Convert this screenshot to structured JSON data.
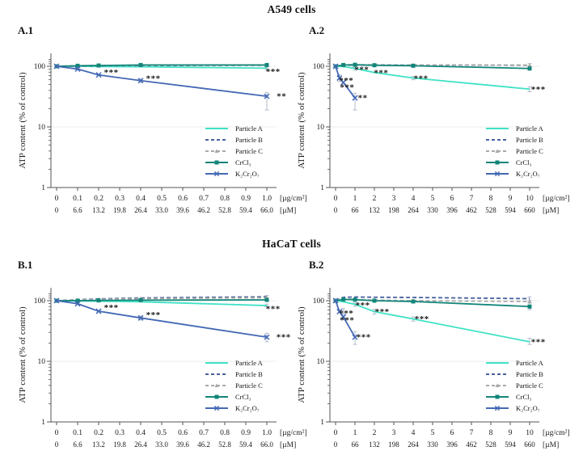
{
  "figure": {
    "row_titles": {
      "a": "A549 cells",
      "b": "HaCaT cells"
    },
    "panels": {
      "a1": "A.1",
      "a2": "A.2",
      "b1": "B.1",
      "b2": "B.2"
    }
  },
  "colors": {
    "particle_a": "#3fe2c5",
    "particle_b": "#46619e",
    "particle_c": "#a9a9a9",
    "crcl3": "#128579",
    "k2cr2o7": "#4468b4",
    "stars_blue": "#5b74c4",
    "stars_black": "#1a1a1a",
    "error_bar": "#b3bccd",
    "axis": "#555555",
    "grid": "#ededed"
  },
  "chart_data": [
    {
      "id": "A.1",
      "type": "line",
      "yscale": "log",
      "ylim": [
        1,
        140
      ],
      "ylabel": "ATP content (% of control)",
      "yticks": [
        "1",
        "10",
        "100"
      ],
      "x_tick_values": [
        0,
        0.1,
        0.2,
        0.3,
        0.4,
        0.5,
        0.6,
        0.7,
        0.8,
        0.9,
        1.0
      ],
      "x_ticks_ugcm2": [
        "0",
        "0.1",
        "0.2",
        "0.3",
        "0.4",
        "0.5",
        "0.6",
        "0.7",
        "0.8",
        "0.9",
        "1.0"
      ],
      "x_ticks_um": [
        "0",
        "6.6",
        "13.2",
        "19.8",
        "26.4",
        "33.0",
        "39.6",
        "46.2",
        "52.8",
        "59.4",
        "66.0"
      ],
      "x_unit_labels": [
        "[µg/cm²]",
        "[µM]"
      ],
      "legend_position": "bottom-right",
      "series": [
        {
          "name": "Particle A",
          "color": "#3fe2c5",
          "style": "solid",
          "marker": "none",
          "x": [
            0,
            0.1,
            0.2,
            0.4,
            1
          ],
          "y": [
            100,
            100,
            99,
            98,
            93
          ]
        },
        {
          "name": "Particle B",
          "color": "#46619e",
          "style": "dashed",
          "marker": "none",
          "x": [
            0,
            0.1,
            0.2,
            0.4,
            1
          ],
          "y": [
            100,
            101,
            102,
            103,
            104
          ]
        },
        {
          "name": "Particle C",
          "color": "#a9a9a9",
          "style": "dashed",
          "marker": "triangle",
          "x": [
            0,
            0.1,
            0.2,
            0.4,
            1
          ],
          "y": [
            100,
            102,
            103,
            104,
            105
          ]
        },
        {
          "name": "CrCl₃",
          "color": "#128579",
          "style": "solid",
          "marker": "square",
          "x": [
            0,
            0.1,
            0.2,
            0.4,
            1
          ],
          "y": [
            100,
            102,
            103,
            105,
            105
          ]
        },
        {
          "name": "K₂Cr₂O₇",
          "color": "#4468b4",
          "style": "solid",
          "marker": "x",
          "x": [
            0,
            0.1,
            0.2,
            0.4,
            1
          ],
          "y": [
            100,
            90,
            72,
            58,
            32
          ]
        }
      ],
      "error_bars": [
        {
          "x": 0.4,
          "lo": 54,
          "hi": 62
        },
        {
          "x": 1,
          "lo": 19,
          "hi": 37
        },
        {
          "x": 1,
          "lo": 88,
          "hi": 97
        },
        {
          "x": 1,
          "lo": 100,
          "hi": 110
        }
      ],
      "annotations": [
        {
          "x": 0.26,
          "y": 79,
          "text": "***",
          "color": "#5b74c4"
        },
        {
          "x": 0.46,
          "y": 63,
          "text": "***",
          "color": "#5b74c4"
        },
        {
          "x": 1.07,
          "y": 32,
          "text": "**",
          "color": "#5b74c4"
        },
        {
          "x": 1.03,
          "y": 82,
          "text": "***",
          "color": "#1a1a1a"
        }
      ]
    },
    {
      "id": "A.2",
      "type": "line",
      "yscale": "log",
      "ylim": [
        1,
        140
      ],
      "ylabel": "ATP content (% of control)",
      "yticks": [
        "1",
        "10",
        "100"
      ],
      "x_tick_values": [
        0,
        1,
        2,
        3,
        4,
        5,
        6,
        7,
        8,
        9,
        10
      ],
      "x_ticks_ugcm2": [
        "0",
        "1",
        "2",
        "3",
        "4",
        "5",
        "6",
        "7",
        "8",
        "9",
        "10"
      ],
      "x_ticks_um": [
        "0",
        "66",
        "132",
        "198",
        "264",
        "330",
        "396",
        "462",
        "528",
        "594",
        "660"
      ],
      "x_unit_labels": [
        "[µg/cm²]",
        "[µM]"
      ],
      "legend_position": "bottom-right",
      "series": [
        {
          "name": "Particle A",
          "color": "#3fe2c5",
          "style": "solid",
          "marker": "none",
          "x": [
            0,
            0.4,
            1,
            2,
            4,
            10
          ],
          "y": [
            100,
            99,
            92,
            79,
            64,
            42
          ]
        },
        {
          "name": "Particle B",
          "color": "#46619e",
          "style": "dashed",
          "marker": "none",
          "x": [
            0,
            0.4,
            1,
            2,
            4,
            10
          ],
          "y": [
            100,
            104,
            105,
            105,
            105,
            104
          ]
        },
        {
          "name": "Particle C",
          "color": "#a9a9a9",
          "style": "dashed",
          "marker": "triangle",
          "x": [
            0,
            0.4,
            1,
            2,
            4,
            10
          ],
          "y": [
            100,
            105,
            106,
            106,
            105,
            104
          ]
        },
        {
          "name": "CrCl₃",
          "color": "#128579",
          "style": "solid",
          "marker": "square",
          "x": [
            0,
            0.4,
            1,
            2,
            4,
            10
          ],
          "y": [
            100,
            105,
            106,
            104,
            102,
            92
          ]
        },
        {
          "name": "K₂Cr₂O₇",
          "color": "#4468b4",
          "style": "solid",
          "marker": "x",
          "x": [
            0,
            0.2,
            0.4,
            1
          ],
          "y": [
            100,
            64,
            54,
            30
          ]
        }
      ],
      "error_bars": [
        {
          "x": 0.2,
          "lo": 56,
          "hi": 72
        },
        {
          "x": 1,
          "lo": 19,
          "hi": 36
        },
        {
          "x": 1,
          "lo": 86,
          "hi": 97
        },
        {
          "x": 4,
          "lo": 60,
          "hi": 68
        },
        {
          "x": 10,
          "lo": 38,
          "hi": 46
        },
        {
          "x": 10,
          "lo": 86,
          "hi": 99
        },
        {
          "x": 10,
          "lo": 99,
          "hi": 111
        }
      ],
      "annotations": [
        {
          "x": 0.55,
          "y": 58,
          "text": "***",
          "color": "#5b74c4"
        },
        {
          "x": 0.6,
          "y": 45,
          "text": "***",
          "color": "#5b74c4"
        },
        {
          "x": 1.4,
          "y": 30,
          "text": "**",
          "color": "#5b74c4"
        },
        {
          "x": 1.35,
          "y": 88,
          "text": "***",
          "color": "#1a1a1a"
        },
        {
          "x": 2.35,
          "y": 78,
          "text": "***",
          "color": "#1a1a1a"
        },
        {
          "x": 4.4,
          "y": 63,
          "text": "***",
          "color": "#1a1a1a"
        },
        {
          "x": 10.45,
          "y": 42,
          "text": "***",
          "color": "#1a1a1a"
        }
      ]
    },
    {
      "id": "B.1",
      "type": "line",
      "yscale": "log",
      "ylim": [
        1,
        140
      ],
      "ylabel": "ATP content (% of control)",
      "yticks": [
        "1",
        "10",
        "100"
      ],
      "x_tick_values": [
        0,
        0.1,
        0.2,
        0.3,
        0.4,
        0.5,
        0.6,
        0.7,
        0.8,
        0.9,
        1.0
      ],
      "x_ticks_ugcm2": [
        "0",
        "0.1",
        "0.2",
        "0.3",
        "0.4",
        "0.5",
        "0.6",
        "0.7",
        "0.8",
        "0.9",
        "1.0"
      ],
      "x_ticks_um": [
        "0",
        "6.6",
        "13.2",
        "19.8",
        "26.4",
        "33.0",
        "39.6",
        "46.2",
        "52.8",
        "59.4",
        "66.0"
      ],
      "x_unit_labels": [
        "[µg/cm²]",
        "[µM]"
      ],
      "legend_position": "bottom-right",
      "series": [
        {
          "name": "Particle A",
          "color": "#3fe2c5",
          "style": "solid",
          "marker": "none",
          "x": [
            0,
            0.1,
            0.2,
            0.4,
            1
          ],
          "y": [
            100,
            99,
            98,
            96,
            83
          ]
        },
        {
          "name": "Particle B",
          "color": "#46619e",
          "style": "dashed",
          "marker": "none",
          "x": [
            0,
            0.1,
            0.2,
            0.4,
            1
          ],
          "y": [
            100,
            104,
            107,
            111,
            116
          ]
        },
        {
          "name": "Particle C",
          "color": "#a9a9a9",
          "style": "dashed",
          "marker": "triangle",
          "x": [
            0,
            0.1,
            0.2,
            0.4,
            1
          ],
          "y": [
            100,
            103,
            105,
            108,
            112
          ]
        },
        {
          "name": "CrCl₃",
          "color": "#128579",
          "style": "solid",
          "marker": "square",
          "x": [
            0,
            0.1,
            0.2,
            0.4,
            1
          ],
          "y": [
            100,
            100,
            101,
            102,
            103
          ]
        },
        {
          "name": "K₂Cr₂O₇",
          "color": "#4468b4",
          "style": "solid",
          "marker": "x",
          "x": [
            0,
            0.1,
            0.2,
            0.4,
            1
          ],
          "y": [
            100,
            89,
            67,
            52,
            25
          ]
        }
      ],
      "error_bars": [
        {
          "x": 0.4,
          "lo": 48,
          "hi": 56
        },
        {
          "x": 1,
          "lo": 21,
          "hi": 29
        },
        {
          "x": 1,
          "lo": 79,
          "hi": 88
        },
        {
          "x": 1,
          "lo": 110,
          "hi": 122
        }
      ],
      "annotations": [
        {
          "x": 0.26,
          "y": 77,
          "text": "***",
          "color": "#5b74c4"
        },
        {
          "x": 0.46,
          "y": 58,
          "text": "***",
          "color": "#5b74c4"
        },
        {
          "x": 1.08,
          "y": 25,
          "text": "***",
          "color": "#5b74c4"
        },
        {
          "x": 1.03,
          "y": 74,
          "text": "***",
          "color": "#1a1a1a"
        }
      ]
    },
    {
      "id": "B.2",
      "type": "line",
      "yscale": "log",
      "ylim": [
        1,
        140
      ],
      "ylabel": "ATP content (% of control)",
      "yticks": [
        "1",
        "10",
        "100"
      ],
      "x_tick_values": [
        0,
        1,
        2,
        3,
        4,
        5,
        6,
        7,
        8,
        9,
        10
      ],
      "x_ticks_ugcm2": [
        "0",
        "1",
        "2",
        "3",
        "4",
        "5",
        "6",
        "7",
        "8",
        "9",
        "10"
      ],
      "x_ticks_um": [
        "0",
        "66",
        "132",
        "198",
        "264",
        "330",
        "396",
        "462",
        "528",
        "594",
        "660"
      ],
      "x_unit_labels": [
        "[µg/cm²]",
        "[µM]"
      ],
      "legend_position": "bottom-right",
      "series": [
        {
          "name": "Particle A",
          "color": "#3fe2c5",
          "style": "solid",
          "marker": "none",
          "x": [
            0,
            0.4,
            1,
            2,
            4,
            10
          ],
          "y": [
            100,
            96,
            87,
            66,
            50,
            21
          ]
        },
        {
          "name": "Particle B",
          "color": "#46619e",
          "style": "dashed",
          "marker": "none",
          "x": [
            0,
            0.4,
            1,
            2,
            4,
            10
          ],
          "y": [
            100,
            114,
            115,
            114,
            113,
            108
          ]
        },
        {
          "name": "Particle C",
          "color": "#a9a9a9",
          "style": "dashed",
          "marker": "triangle",
          "x": [
            0,
            0.4,
            1,
            2,
            4,
            10
          ],
          "y": [
            100,
            108,
            105,
            102,
            100,
            97
          ]
        },
        {
          "name": "CrCl₃",
          "color": "#128579",
          "style": "solid",
          "marker": "square",
          "x": [
            0,
            0.4,
            1,
            2,
            4,
            10
          ],
          "y": [
            100,
            105,
            104,
            100,
            97,
            80
          ]
        },
        {
          "name": "K₂Cr₂O₇",
          "color": "#4468b4",
          "style": "solid",
          "marker": "x",
          "x": [
            0,
            0.2,
            0.4,
            1
          ],
          "y": [
            100,
            66,
            54,
            25
          ]
        }
      ],
      "error_bars": [
        {
          "x": 0.4,
          "lo": 60,
          "hi": 74
        },
        {
          "x": 1,
          "lo": 19,
          "hi": 31
        },
        {
          "x": 1,
          "lo": 81,
          "hi": 93
        },
        {
          "x": 2,
          "lo": 60,
          "hi": 72
        },
        {
          "x": 4,
          "lo": 46,
          "hi": 54
        },
        {
          "x": 10,
          "lo": 19,
          "hi": 24
        },
        {
          "x": 10,
          "lo": 71,
          "hi": 91
        },
        {
          "x": 10,
          "lo": 101,
          "hi": 116
        }
      ],
      "annotations": [
        {
          "x": 0.55,
          "y": 62,
          "text": "***",
          "color": "#5b74c4"
        },
        {
          "x": 0.6,
          "y": 48,
          "text": "***",
          "color": "#5b74c4"
        },
        {
          "x": 1.45,
          "y": 25,
          "text": "***",
          "color": "#5b74c4"
        },
        {
          "x": 1.4,
          "y": 84,
          "text": "***",
          "color": "#1a1a1a"
        },
        {
          "x": 2.4,
          "y": 66,
          "text": "***",
          "color": "#1a1a1a"
        },
        {
          "x": 4.45,
          "y": 50,
          "text": "***",
          "color": "#1a1a1a"
        },
        {
          "x": 10.45,
          "y": 21,
          "text": "***",
          "color": "#1a1a1a"
        }
      ]
    }
  ]
}
